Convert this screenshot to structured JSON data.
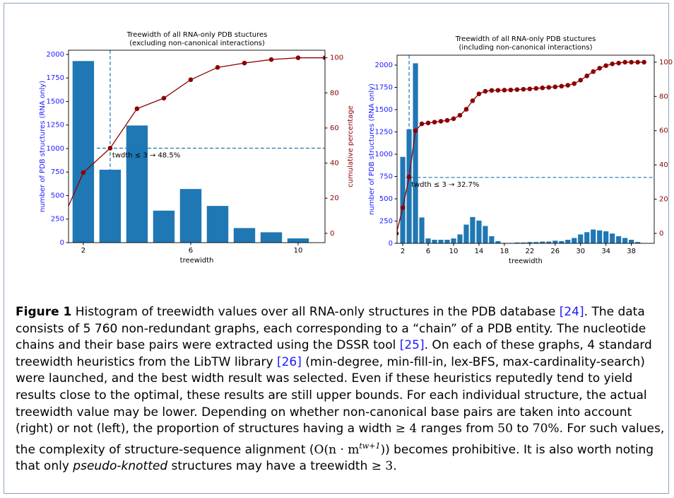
{
  "chart_data": [
    {
      "type": "bar",
      "title": "Treewidth of all RNA-only PDB stuctures",
      "subtitle": "(excluding non-canonical interactions)",
      "xlabel": "treewidth",
      "ylabel": "number of PDB structures (RNA only)",
      "y2label": "cumulative percentage",
      "xlim": [
        1.45,
        11
      ],
      "xticks": [
        2,
        6,
        10
      ],
      "ylim": [
        0,
        2045
      ],
      "yticks": [
        0,
        250,
        500,
        750,
        1000,
        1250,
        1500,
        1750,
        2000
      ],
      "y2lim": [
        -5.3,
        104.3
      ],
      "y2ticks": [
        0,
        20,
        40,
        60,
        80,
        100
      ],
      "series": [
        {
          "type": "bar",
          "color": "#1f77b4",
          "x": [
            2,
            3,
            4,
            5,
            6,
            7,
            8,
            9,
            10
          ],
          "values": [
            1930,
            775,
            1245,
            340,
            570,
            390,
            155,
            110,
            45
          ]
        },
        {
          "type": "line",
          "axis": "y2",
          "color": "#8b0000",
          "x": [
            1,
            2,
            3,
            4,
            5,
            6,
            7,
            8,
            9,
            10,
            11
          ],
          "values": [
            0,
            34.6,
            48.5,
            71,
            77,
            87.5,
            94.5,
            97,
            99,
            100,
            100
          ]
        }
      ],
      "reference_x": 3,
      "reference_y2": 48.5,
      "annotation": "twdth ≤ 3 → 48.5%"
    },
    {
      "type": "bar",
      "title": "Treewidth of all RNA-only PDB stuctures",
      "subtitle": "(including non-canonical interactions)",
      "xlabel": "treewidth",
      "ylabel": "number of PDB structures (RNA only)",
      "xlim": [
        1.1,
        41.6
      ],
      "xticks": [
        2,
        6,
        10,
        14,
        18,
        22,
        26,
        30,
        34,
        38
      ],
      "ylim": [
        0,
        2111
      ],
      "yticks": [
        0,
        250,
        500,
        750,
        1000,
        1250,
        1500,
        1750,
        2000
      ],
      "y2lim": [
        -5.8,
        104.1
      ],
      "y2ticks": [
        0,
        20,
        40,
        60,
        80,
        100
      ],
      "series": [
        {
          "type": "bar",
          "color": "#1f77b4",
          "x": [
            2,
            3,
            4,
            5,
            6,
            7,
            8,
            9,
            10,
            11,
            12,
            13,
            14,
            15,
            16,
            17,
            18,
            19,
            20,
            21,
            22,
            23,
            24,
            25,
            26,
            27,
            28,
            29,
            30,
            31,
            32,
            33,
            34,
            35,
            36,
            37,
            38,
            39
          ],
          "values": [
            970,
            1280,
            2020,
            290,
            55,
            40,
            40,
            40,
            55,
            100,
            210,
            295,
            255,
            195,
            80,
            25,
            5,
            5,
            10,
            10,
            15,
            15,
            20,
            20,
            30,
            25,
            40,
            60,
            100,
            125,
            155,
            145,
            135,
            110,
            80,
            60,
            40,
            15
          ]
        },
        {
          "type": "line",
          "axis": "y2",
          "color": "#8b0000",
          "x": [
            1,
            2,
            3,
            4,
            5,
            6,
            7,
            8,
            9,
            10,
            11,
            12,
            13,
            14,
            15,
            16,
            17,
            18,
            19,
            20,
            21,
            22,
            23,
            24,
            25,
            26,
            27,
            28,
            29,
            30,
            31,
            32,
            33,
            34,
            35,
            36,
            37,
            38,
            39,
            40
          ],
          "values": [
            0,
            15,
            33,
            60,
            64,
            64.5,
            65,
            65.5,
            66,
            67,
            69,
            72.5,
            77.5,
            81.5,
            83,
            83.5,
            83.6,
            83.7,
            83.8,
            84,
            84.2,
            84.4,
            84.7,
            85,
            85.3,
            85.6,
            86,
            86.5,
            87.5,
            89.5,
            92,
            94.5,
            96.5,
            98,
            99,
            99.5,
            100,
            100,
            100,
            100
          ]
        }
      ],
      "reference_x": 3,
      "reference_y2": 32.7,
      "annotation": "twdth ≤ 3 → 32.7%"
    }
  ],
  "caption": {
    "parts": [
      {
        "text": "Figure 1",
        "style": "bold"
      },
      {
        "text": " Histogram of treewidth values over all RNA-only structures in the PDB database ",
        "style": "normal"
      },
      {
        "text": "[24]",
        "style": "link"
      },
      {
        "text": ". The data consists of 5 760 non-redundant graphs, each corresponding to a “chain” of a PDB entity. The nucleotide chains and their base pairs were extracted using the DSSR tool ",
        "style": "normal"
      },
      {
        "text": "[25]",
        "style": "link"
      },
      {
        "text": ". On each of these graphs, 4 standard treewidth heuristics from the LibTW library ",
        "style": "normal"
      },
      {
        "text": "[26]",
        "style": "link"
      },
      {
        "text": " (min-degree, min-fill-in, lex-BFS, max-cardinality-search) were launched, and the best width result was selected. Even if these heuristics reputedly tend to yield results close to the optimal, these results are still upper bounds. For each individual structure, the actual treewidth value may be lower. Depending on whether non-canonical base pairs are taken into account (right) or not (left), the proportion of structures having a width ",
        "style": "normal"
      },
      {
        "text": "≥ 4",
        "style": "math"
      },
      {
        "text": " ranges from ",
        "style": "normal"
      },
      {
        "text": "50",
        "style": "math"
      },
      {
        "text": " to ",
        "style": "normal"
      },
      {
        "text": "70%",
        "style": "math"
      },
      {
        "text": ". For such values, the complexity of structure-sequence alignment (",
        "style": "normal"
      },
      {
        "text": "O(n · m",
        "style": "math"
      },
      {
        "text": "tw+1",
        "style": "sup"
      },
      {
        "text": ")",
        "style": "math"
      },
      {
        "text": ") becomes prohibitive. It is also worth noting that only ",
        "style": "normal"
      },
      {
        "text": "pseudo-knotted",
        "style": "italic"
      },
      {
        "text": " structures may have a treewidth ",
        "style": "normal"
      },
      {
        "text": "≥ 3",
        "style": "math"
      },
      {
        "text": ".",
        "style": "normal"
      }
    ]
  }
}
